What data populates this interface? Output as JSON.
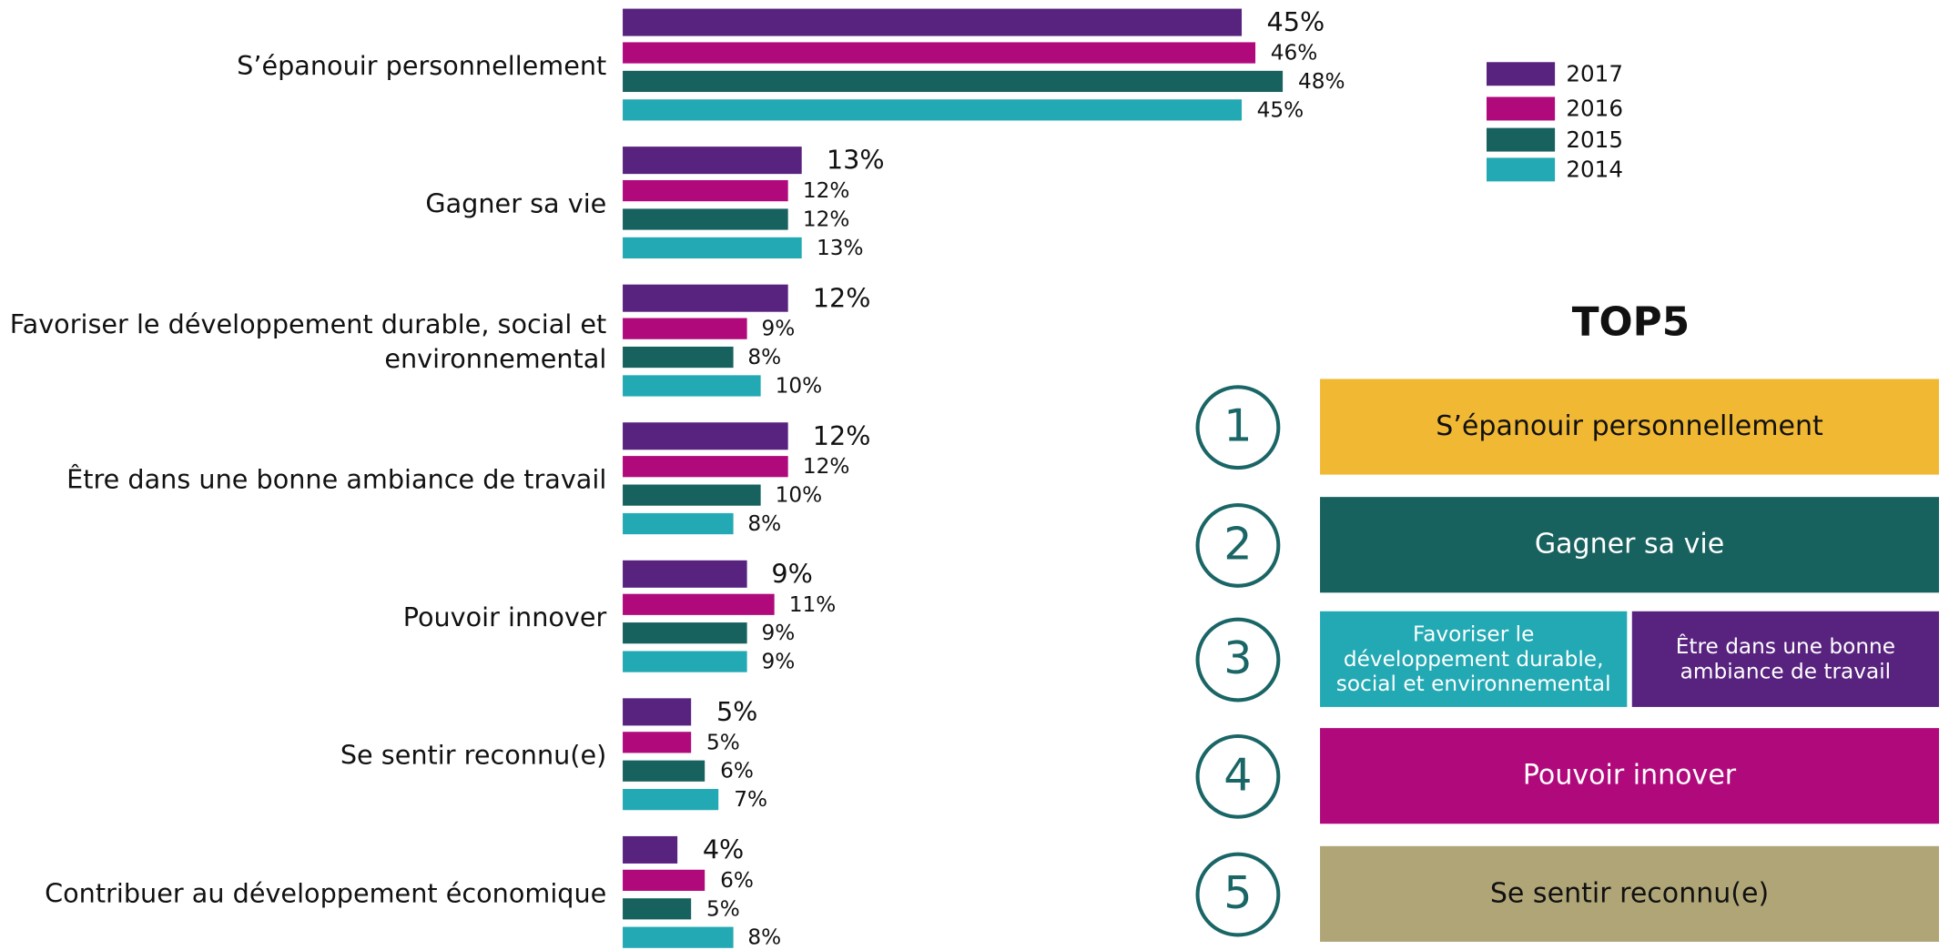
{
  "chart_data": {
    "type": "bar",
    "orientation": "horizontal",
    "categories": [
      "S’épanouir personnellement",
      "Gagner sa vie",
      "Favoriser le développement durable, social et environnemental",
      "Être dans une bonne ambiance de travail",
      "Pouvoir innover",
      "Se sentir reconnu(e)",
      "Contribuer au développement économique"
    ],
    "series": [
      {
        "name": "2017",
        "color": "#58237f",
        "values": [
          45,
          13,
          12,
          12,
          9,
          5,
          4
        ],
        "value_labels": [
          "45%",
          "13%",
          "12%",
          "12%",
          "9%",
          "5%",
          "4%"
        ]
      },
      {
        "name": "2016",
        "color": "#b0097c",
        "values": [
          46,
          12,
          9,
          12,
          11,
          5,
          6
        ],
        "value_labels": [
          "46%",
          "12%",
          "9%",
          "12%",
          "11%",
          "5%",
          "6%"
        ]
      },
      {
        "name": "2015",
        "color": "#17615f",
        "values": [
          48,
          12,
          8,
          10,
          9,
          6,
          5
        ],
        "value_labels": [
          "48%",
          "12%",
          "8%",
          "10%",
          "9%",
          "6%",
          "5%"
        ]
      },
      {
        "name": "2014",
        "color": "#22a9b3",
        "values": [
          45,
          13,
          10,
          8,
          9,
          7,
          8
        ],
        "value_labels": [
          "45%",
          "13%",
          "10%",
          "8%",
          "9%",
          "7%",
          "8%"
        ]
      }
    ]
  },
  "top5": {
    "title": "TOP5",
    "items": [
      {
        "rank": 1,
        "labels": [
          "S’épanouir personnellement"
        ]
      },
      {
        "rank": 2,
        "labels": [
          "Gagner sa vie"
        ]
      },
      {
        "rank": 3,
        "labels": [
          "Favoriser le développement durable, social et environnemental",
          "Être dans une bonne ambiance de travail"
        ]
      },
      {
        "rank": 4,
        "labels": [
          "Pouvoir innover"
        ]
      },
      {
        "rank": 5,
        "labels": [
          "Se sentir reconnu(e)"
        ]
      }
    ]
  }
}
